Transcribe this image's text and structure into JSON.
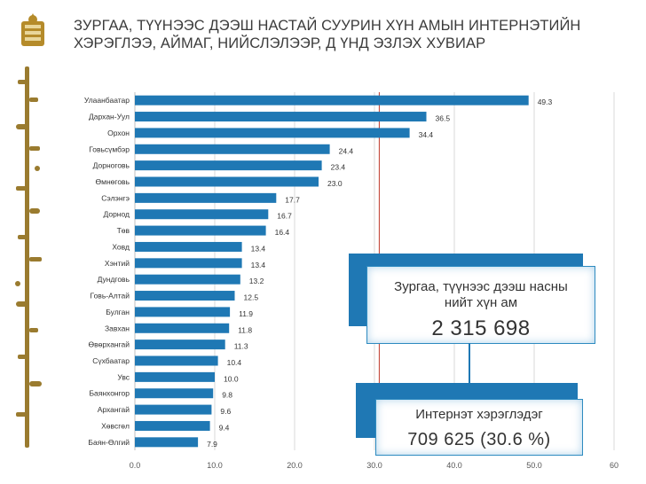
{
  "slide": {
    "title": "ЗУРГАА, ТҮҮНЭЭС ДЭЭШ НАСТАЙ СУУРИН ХҮН АМЫН ИНТЕРНЭТИЙН ХЭРЭГЛЭЭ, АЙМАГ, НИЙСЛЭЛЭЭР, Д ҮНД ЭЗЛЭХ ХУВИАР"
  },
  "callouts": {
    "population_label": "Зургаа, түүнээс дээш насны нийт хүн ам",
    "population_value": "2 315 698",
    "users_label": "Интернэт хэрэглэдэг",
    "users_value": "709 625 (30.6 %)"
  },
  "colors": {
    "bar": "#1f78b4",
    "box": "#1f78b4",
    "reference_line": "#c0392b",
    "grid": "#d9d9d9"
  },
  "chart_data": {
    "type": "bar",
    "orientation": "horizontal",
    "categories": [
      "Улаанбаатар",
      "Дархан-Уул",
      "Орхон",
      "Говьсүмбэр",
      "Дорноговь",
      "Өмнөговь",
      "Сэлэнгэ",
      "Дорнод",
      "Төв",
      "Ховд",
      "Хэнтий",
      "Дундговь",
      "Говь-Алтай",
      "Булган",
      "Завхан",
      "Өвөрхангай",
      "Сүхбаатар",
      "Увс",
      "Баянхонгор",
      "Архангай",
      "Хөвсгөл",
      "Баян-Өлгий"
    ],
    "values": [
      49.3,
      36.5,
      34.4,
      24.4,
      23.4,
      23.0,
      17.7,
      16.7,
      16.4,
      13.4,
      13.4,
      13.2,
      12.5,
      11.9,
      11.8,
      11.3,
      10.4,
      10.0,
      9.8,
      9.6,
      9.4,
      7.9
    ],
    "value_labels": [
      "49.3",
      "36.5",
      "34.4",
      "24.4",
      "23.4",
      "23.0",
      "17.7",
      "16.7",
      "16.4",
      "13.4",
      "13.4",
      "13.2",
      "12.5",
      "11.9",
      "11.8",
      "11.3",
      "10.4",
      "10.0",
      "9.8",
      "9.6",
      "9.4",
      "7.9"
    ],
    "xticks": [
      "0.0",
      "10.0",
      "20.0",
      "30.0",
      "40.0",
      "50.0",
      "60"
    ],
    "xlim": [
      0,
      60
    ],
    "reference_value": 30.6,
    "grid": true,
    "title": "",
    "xlabel": "",
    "ylabel": ""
  }
}
